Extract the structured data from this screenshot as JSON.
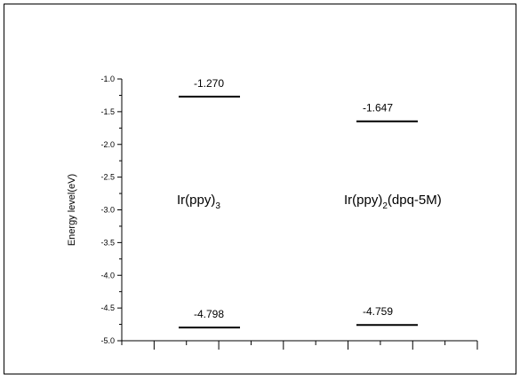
{
  "chart_data": {
    "type": "energy-level diagram",
    "title": "",
    "xlabel": "",
    "ylabel": "Energy level(eV)",
    "ylim": [
      -5.0,
      -1.0
    ],
    "y_ticks": [
      "-1.0",
      "-1.5",
      "-2.0",
      "-2.5",
      "-3.0",
      "-3.5",
      "-4.0",
      "-4.5",
      "-5.0"
    ],
    "x_ticks_unlabeled": 12,
    "compounds": [
      {
        "name": "Ir(ppy)3",
        "label_base": "Ir(ppy)",
        "label_sub": "3",
        "label_tail": "",
        "levels": [
          {
            "value": -1.27,
            "text": "-1.270"
          },
          {
            "value": -4.798,
            "text": "-4.798"
          }
        ]
      },
      {
        "name": "Ir(ppy)2(dpq-5M)",
        "label_base": "Ir(ppy)",
        "label_sub": "2",
        "label_tail": "(dpq-5M)",
        "levels": [
          {
            "value": -1.647,
            "text": "-1.647"
          },
          {
            "value": -4.759,
            "text": "-4.759"
          }
        ]
      }
    ],
    "grid": false
  }
}
